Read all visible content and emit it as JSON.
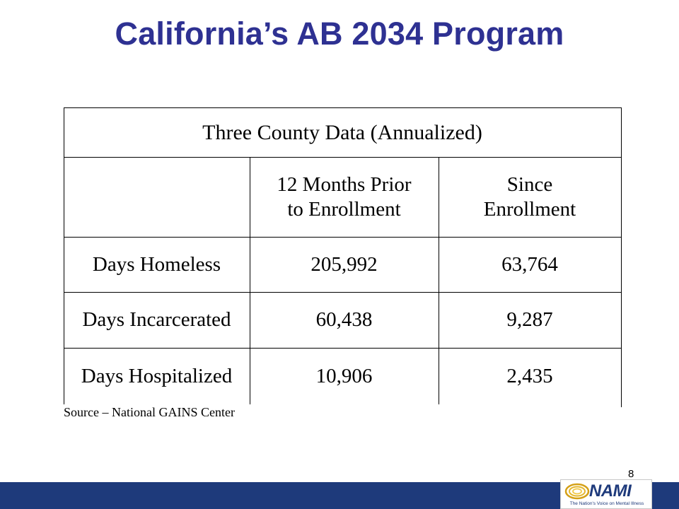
{
  "slide": {
    "title": "California’s AB 2034 Program",
    "page_number": "8"
  },
  "table": {
    "caption": "Three County Data (Annualized)",
    "headers": [
      "",
      "12 Months Prior\nto Enrollment",
      "Since\nEnrollment"
    ],
    "rows": [
      {
        "label": "Days Homeless",
        "prior": "205,992",
        "since": "63,764"
      },
      {
        "label": "Days Incarcerated",
        "prior": "60,438",
        "since": "9,287"
      },
      {
        "label": "Days Hospitalized",
        "prior": "10,906",
        "since": "2,435"
      }
    ],
    "source": "Source – National GAINS Center"
  },
  "footer": {
    "logo_name": "NAMI",
    "logo_tagline": "The Nation's Voice on Mental Illness",
    "bar_color": "#1e3a7b"
  },
  "colors": {
    "title": "#2e3192"
  }
}
